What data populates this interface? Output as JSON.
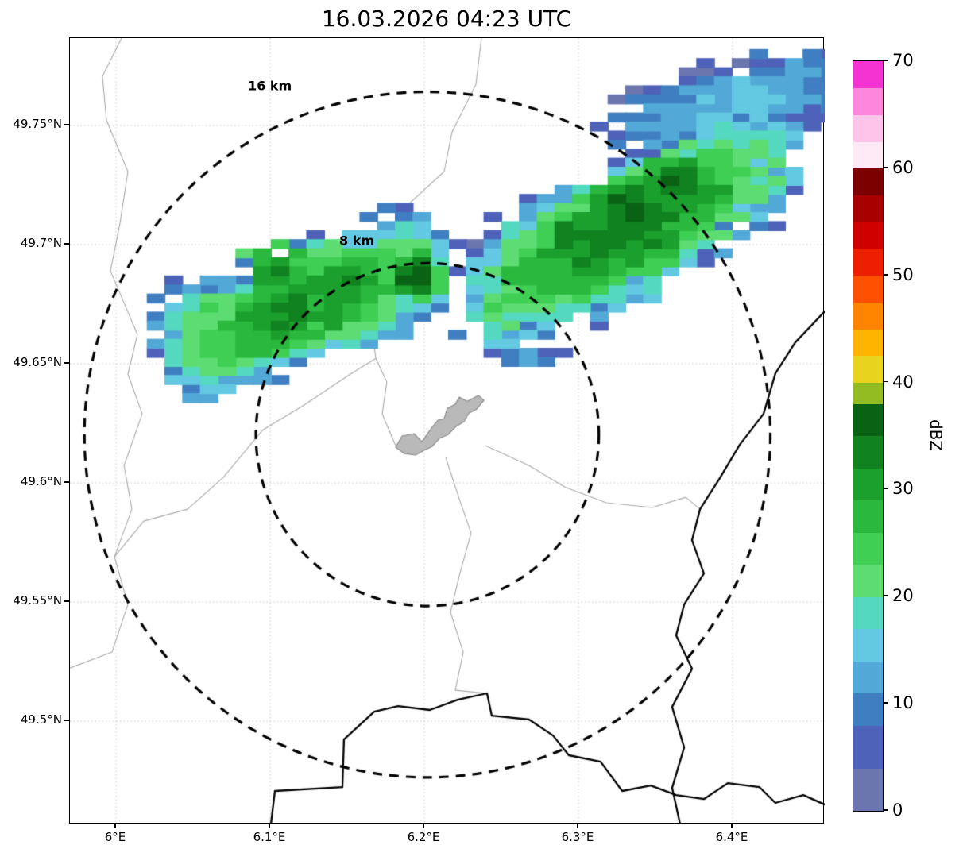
{
  "chart_data": {
    "type": "heatmap",
    "title": "16.03.2026 04:23 UTC",
    "units": "dBZ",
    "radar_site": {
      "lon": 6.202,
      "lat": 49.6203
    },
    "range_rings": [
      {
        "radius_km": 8,
        "label": "8 km"
      },
      {
        "radius_km": 16,
        "label": "16 km"
      }
    ],
    "colorbar": {
      "label": "dBZ",
      "min": 0,
      "max": 70,
      "ticks": [
        0,
        10,
        20,
        30,
        40,
        50,
        60,
        70
      ],
      "bins": [
        {
          "to": 4,
          "c": "#6b76ae"
        },
        {
          "to": 8,
          "c": "#4d62b8"
        },
        {
          "to": 11,
          "c": "#3f7fc1"
        },
        {
          "to": 14,
          "c": "#52a8d6"
        },
        {
          "to": 17,
          "c": "#63c8e2"
        },
        {
          "to": 20,
          "c": "#55d8c0"
        },
        {
          "to": 23,
          "c": "#5ddc72"
        },
        {
          "to": 26,
          "c": "#3ecf54"
        },
        {
          "to": 29,
          "c": "#2ab93e"
        },
        {
          "to": 32,
          "c": "#1ba02e"
        },
        {
          "to": 35,
          "c": "#108220"
        },
        {
          "to": 38,
          "c": "#0a6314"
        },
        {
          "to": 40,
          "c": "#93bc22"
        },
        {
          "to": 42.5,
          "c": "#e8d41c"
        },
        {
          "to": 45,
          "c": "#ffb400"
        },
        {
          "to": 47.5,
          "c": "#ff8400"
        },
        {
          "to": 50,
          "c": "#ff4f00"
        },
        {
          "to": 52.5,
          "c": "#ee1f00"
        },
        {
          "to": 55,
          "c": "#d00000"
        },
        {
          "to": 57.5,
          "c": "#a80000"
        },
        {
          "to": 60,
          "c": "#7c0000"
        },
        {
          "to": 62.5,
          "c": "#fdeaf6"
        },
        {
          "to": 65,
          "c": "#ffc4ea"
        },
        {
          "to": 67.5,
          "c": "#ff86dd"
        },
        {
          "to": 70,
          "c": "#f532d2"
        }
      ]
    },
    "cell_size": {
      "dlon": 0.0115,
      "dlat": 0.0038
    },
    "min_dbz": 1.5,
    "max_dbz": 36.8,
    "seed": 20260316,
    "echo_bands": [
      {
        "name": "west-band",
        "p1": [
          6.045,
          49.656
        ],
        "p2": [
          6.195,
          49.692
        ],
        "sigma_lon": 0.032,
        "sigma_lat": 0.03,
        "peak_dbz": 29,
        "stamps": 26,
        "points": 70,
        "jitter_lon": 0.016,
        "jitter_lat": 0.006
      },
      {
        "name": "east-band",
        "p1": [
          6.25,
          49.679
        ],
        "p2": [
          6.415,
          49.734
        ],
        "sigma_lon": 0.036,
        "sigma_lat": 0.032,
        "peak_dbz": 30,
        "stamps": 30,
        "points": 80,
        "jitter_lon": 0.016,
        "jitter_lat": 0.006
      },
      {
        "name": "northeast-corner-band",
        "p1": [
          6.35,
          49.751
        ],
        "p2": [
          6.455,
          49.768
        ],
        "sigma_lon": 0.04,
        "sigma_lat": 0.02,
        "peak_dbz": 11,
        "stamps": 18,
        "points": 45,
        "jitter_lon": 0.012,
        "jitter_lat": 0.005
      },
      {
        "name": "isolated-south-echo",
        "p1": [
          6.259,
          49.6525
        ],
        "p2": [
          6.2745,
          49.6525
        ],
        "sigma_lon": 0.008,
        "sigma_lat": 0.0025,
        "peak_dbz": 9,
        "stamps": 4,
        "points": 12,
        "jitter_lon": 0.002,
        "jitter_lat": 0.001
      }
    ],
    "echo_cores": [
      {
        "lon": 6.196,
        "lat": 49.687,
        "dbz": 34.5,
        "r": 0.013
      },
      {
        "lon": 6.103,
        "lat": 49.691,
        "dbz": 31.0,
        "r": 0.016
      },
      {
        "lon": 6.152,
        "lat": 49.684,
        "dbz": 30.0,
        "r": 0.014
      },
      {
        "lon": 6.33,
        "lat": 49.716,
        "dbz": 33.5,
        "r": 0.02
      },
      {
        "lon": 6.363,
        "lat": 49.727,
        "dbz": 32.5,
        "r": 0.015
      },
      {
        "lon": 6.296,
        "lat": 49.704,
        "dbz": 31.0,
        "r": 0.015
      }
    ]
  },
  "map": {
    "extent": {
      "lon_min": 5.9701,
      "lon_max": 6.4598,
      "lat_min": 49.4567,
      "lat_max": 49.7867
    },
    "xticks": [
      {
        "value": 6.0,
        "label": "6°E"
      },
      {
        "value": 6.1,
        "label": "6.1°E"
      },
      {
        "value": 6.2,
        "label": "6.2°E"
      },
      {
        "value": 6.3,
        "label": "6.3°E"
      },
      {
        "value": 6.4,
        "label": "6.4°E"
      }
    ],
    "yticks": [
      {
        "value": 49.75,
        "label": "49.75°N"
      },
      {
        "value": 49.7,
        "label": "49.7°N"
      },
      {
        "value": 49.65,
        "label": "49.65°N"
      },
      {
        "value": 49.6,
        "label": "49.6°N"
      },
      {
        "value": 49.55,
        "label": "49.55°N"
      },
      {
        "value": 49.5,
        "label": "49.5°N"
      }
    ],
    "grid_lons": [
      6.0,
      6.1,
      6.2,
      6.3,
      6.4
    ],
    "grid_lats": [
      49.5,
      49.55,
      49.6,
      49.65,
      49.7,
      49.75
    ],
    "borders_black": [
      [
        [
          6.4598,
          49.672
        ],
        [
          6.4407,
          49.659
        ],
        [
          6.4278,
          49.646
        ],
        [
          6.4201,
          49.629
        ],
        [
          6.4046,
          49.616
        ],
        [
          6.3917,
          49.602
        ],
        [
          6.3789,
          49.589
        ],
        [
          6.3737,
          49.576
        ],
        [
          6.3814,
          49.562
        ],
        [
          6.3686,
          49.549
        ],
        [
          6.3634,
          49.536
        ],
        [
          6.3737,
          49.522
        ],
        [
          6.3608,
          49.506
        ],
        [
          6.3686,
          49.489
        ],
        [
          6.3608,
          49.472
        ],
        [
          6.366,
          49.4567
        ]
      ],
      [
        [
          6.1005,
          49.4567
        ],
        [
          6.1031,
          49.4707
        ],
        [
          6.1469,
          49.4723
        ],
        [
          6.1479,
          49.4923
        ],
        [
          6.1675,
          49.504
        ],
        [
          6.183,
          49.5063
        ],
        [
          6.2036,
          49.5047
        ],
        [
          6.2216,
          49.509
        ],
        [
          6.2407,
          49.5117
        ],
        [
          6.2438,
          49.5023
        ],
        [
          6.268,
          49.5007
        ],
        [
          6.2835,
          49.494
        ],
        [
          6.2938,
          49.4857
        ],
        [
          6.3144,
          49.483
        ],
        [
          6.3284,
          49.4707
        ],
        [
          6.3469,
          49.473
        ],
        [
          6.3634,
          49.469
        ],
        [
          6.3814,
          49.4673
        ],
        [
          6.3969,
          49.474
        ],
        [
          6.4175,
          49.4723
        ],
        [
          6.4278,
          49.4657
        ],
        [
          6.4459,
          49.469
        ],
        [
          6.4598,
          49.465
        ]
      ]
    ],
    "borders_gray": [
      [
        [
          6.0036,
          49.7867
        ],
        [
          5.9912,
          49.7707
        ],
        [
          5.9938,
          49.7523
        ],
        [
          6.0077,
          49.7307
        ],
        [
          6.0026,
          49.709
        ],
        [
          5.9964,
          49.689
        ],
        [
          6.0139,
          49.6623
        ],
        [
          6.0077,
          49.6457
        ],
        [
          6.017,
          49.629
        ],
        [
          6.0052,
          49.6073
        ],
        [
          6.0103,
          49.589
        ],
        [
          5.999,
          49.569
        ],
        [
          6.0077,
          49.549
        ],
        [
          5.9974,
          49.529
        ],
        [
          5.9701,
          49.5223
        ]
      ],
      [
        [
          6.2371,
          49.7867
        ],
        [
          6.2335,
          49.7673
        ],
        [
          6.218,
          49.7473
        ],
        [
          6.2129,
          49.7307
        ],
        [
          6.183,
          49.713
        ],
        [
          6.1768,
          49.6923
        ],
        [
          6.1649,
          49.669
        ],
        [
          6.1686,
          49.6523
        ],
        [
          6.1757,
          49.6423
        ],
        [
          6.1727,
          49.629
        ],
        [
          6.1814,
          49.6157
        ]
      ],
      [
        [
          6.1686,
          49.6523
        ],
        [
          6.1521,
          49.6457
        ],
        [
          6.1211,
          49.6323
        ],
        [
          6.0953,
          49.6223
        ],
        [
          6.0696,
          49.6023
        ],
        [
          6.0464,
          49.589
        ],
        [
          6.018,
          49.584
        ],
        [
          5.999,
          49.569
        ]
      ],
      [
        [
          6.2139,
          49.6107
        ],
        [
          6.2232,
          49.5923
        ],
        [
          6.2304,
          49.579
        ],
        [
          6.2232,
          49.5623
        ],
        [
          6.217,
          49.5457
        ],
        [
          6.2253,
          49.529
        ],
        [
          6.2201,
          49.513
        ],
        [
          6.2407,
          49.5117
        ]
      ],
      [
        [
          6.2397,
          49.6157
        ],
        [
          6.268,
          49.6073
        ],
        [
          6.2912,
          49.5983
        ],
        [
          6.318,
          49.5917
        ],
        [
          6.3479,
          49.5897
        ],
        [
          6.3696,
          49.594
        ],
        [
          6.3789,
          49.589
        ]
      ]
    ],
    "urban_area": [
      [
        6.1814,
        49.615
      ],
      [
        6.1856,
        49.6197
      ],
      [
        6.1933,
        49.6207
      ],
      [
        6.1985,
        49.6173
      ],
      [
        6.2046,
        49.623
      ],
      [
        6.2088,
        49.6263
      ],
      [
        6.2129,
        49.627
      ],
      [
        6.2149,
        49.6313
      ],
      [
        6.2201,
        49.633
      ],
      [
        6.2227,
        49.636
      ],
      [
        6.2278,
        49.6343
      ],
      [
        6.2351,
        49.6367
      ],
      [
        6.2387,
        49.6347
      ],
      [
        6.234,
        49.631
      ],
      [
        6.2289,
        49.6293
      ],
      [
        6.2258,
        49.6257
      ],
      [
        6.2206,
        49.6237
      ],
      [
        6.2155,
        49.6203
      ],
      [
        6.2098,
        49.6187
      ],
      [
        6.2051,
        49.6153
      ],
      [
        6.2,
        49.6137
      ],
      [
        6.1943,
        49.6117
      ],
      [
        6.1871,
        49.6123
      ]
    ],
    "colors": {
      "grid": "#c4c4c4",
      "admin_border": "#a8a8a8",
      "country_border": "#000000",
      "urban_fill": "#b9b9b9",
      "urban_stroke": "#8c8c8c",
      "ring": "#000000"
    }
  }
}
